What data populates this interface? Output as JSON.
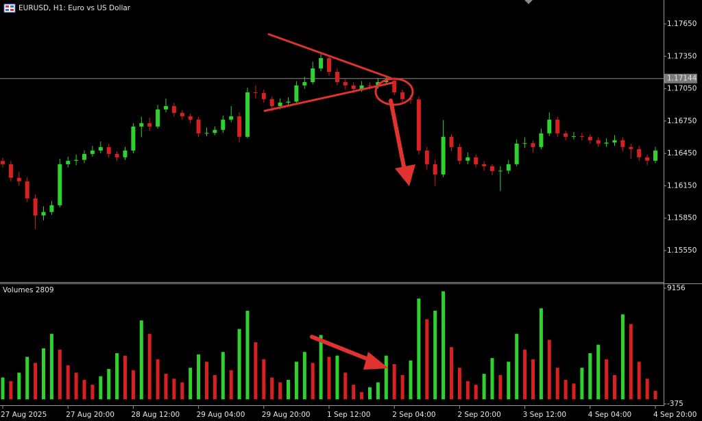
{
  "chart_data": [
    {
      "type": "candlestick",
      "title": "EURUSD, H1:  Euro vs US Dollar",
      "up_color": "#2fd12f",
      "down_color": "#d92020",
      "ylim": [
        1.15258,
        1.17872
      ],
      "yticks": [
        {
          "value": 1.1765,
          "label": "1.17650"
        },
        {
          "value": 1.1735,
          "label": "1.17350"
        },
        {
          "value": 1.1705,
          "label": "1.17050"
        },
        {
          "value": 1.1675,
          "label": "1.16750"
        },
        {
          "value": 1.1645,
          "label": "1.16450"
        },
        {
          "value": 1.1615,
          "label": "1.16150"
        },
        {
          "value": 1.1585,
          "label": "1.15850"
        },
        {
          "value": 1.1555,
          "label": "1.15550"
        }
      ],
      "current_price": {
        "value": 1.17144,
        "label": "1.17144"
      },
      "open": [
        1.1638,
        1.1635,
        1.16224,
        1.16192,
        1.16033,
        1.15875,
        1.15907,
        1.1597,
        1.1635,
        1.16382,
        1.1639,
        1.16445,
        1.16477,
        1.16509,
        1.16445,
        1.16414,
        1.16477,
        1.16699,
        1.16731,
        1.16699,
        1.16858,
        1.16889,
        1.16826,
        1.16794,
        1.16763,
        1.16636,
        1.1664,
        1.16668,
        1.16763,
        1.16794,
        1.16604,
        1.17016,
        1.1701,
        1.16953,
        1.16889,
        1.16921,
        1.1693,
        1.1708,
        1.17111,
        1.17238,
        1.17333,
        1.17206,
        1.17111,
        1.1708,
        1.17048,
        1.1708,
        1.17075,
        1.17111,
        1.17124,
        1.17016,
        1.16953,
        1.1695,
        1.16477,
        1.1635,
        1.16255,
        1.16604,
        1.16509,
        1.16382,
        1.16414,
        1.1635,
        1.16331,
        1.16287,
        1.1629,
        1.1635,
        1.16541,
        1.16545,
        1.16509,
        1.16636,
        1.16763,
        1.16636,
        1.16604,
        1.1661,
        1.16604,
        1.16572,
        1.16541,
        1.1655,
        1.16572,
        1.16509,
        1.1649,
        1.16414,
        1.16382
      ],
      "high": [
        1.1641,
        1.1638,
        1.1628,
        1.1623,
        1.1607,
        1.1596,
        1.1601,
        1.164,
        1.1642,
        1.1644,
        1.1648,
        1.1652,
        1.1656,
        1.1654,
        1.1647,
        1.1651,
        1.1673,
        1.1679,
        1.1678,
        1.169,
        1.1696,
        1.1692,
        1.1685,
        1.1682,
        1.1679,
        1.1669,
        1.167,
        1.168,
        1.1689,
        1.1683,
        1.1706,
        1.1708,
        1.1704,
        1.1698,
        1.1696,
        1.1697,
        1.1712,
        1.1716,
        1.173,
        1.1737,
        1.1735,
        1.1724,
        1.1714,
        1.1711,
        1.1712,
        1.1711,
        1.1715,
        1.1717,
        1.1715,
        1.1704,
        1.1699,
        1.1698,
        1.1651,
        1.1639,
        1.1676,
        1.1663,
        1.1654,
        1.1646,
        1.1644,
        1.1638,
        1.1635,
        1.1633,
        1.1639,
        1.1658,
        1.166,
        1.1657,
        1.1668,
        1.1683,
        1.1679,
        1.1666,
        1.1665,
        1.1664,
        1.1663,
        1.166,
        1.1659,
        1.1662,
        1.166,
        1.1654,
        1.1652,
        1.1644,
        1.1651
      ],
      "low": [
        1.1632,
        1.1619,
        1.1615,
        1.16,
        1.1575,
        1.1583,
        1.1588,
        1.1595,
        1.1632,
        1.1634,
        1.1636,
        1.1642,
        1.1645,
        1.1641,
        1.1638,
        1.1639,
        1.1645,
        1.166,
        1.1666,
        1.1668,
        1.1683,
        1.1679,
        1.1676,
        1.1673,
        1.166,
        1.1661,
        1.1662,
        1.1664,
        1.1674,
        1.1655,
        1.1659,
        1.1696,
        1.1692,
        1.1684,
        1.1686,
        1.1689,
        1.1691,
        1.1705,
        1.1709,
        1.1721,
        1.1717,
        1.1708,
        1.1704,
        1.1701,
        1.1702,
        1.1704,
        1.1705,
        1.1709,
        1.1699,
        1.1692,
        1.1691,
        1.1644,
        1.163,
        1.1615,
        1.1623,
        1.1647,
        1.1635,
        1.1635,
        1.1632,
        1.1629,
        1.1625,
        1.161,
        1.1626,
        1.1633,
        1.165,
        1.1646,
        1.1649,
        1.1661,
        1.166,
        1.1657,
        1.1658,
        1.1657,
        1.1654,
        1.1651,
        1.1651,
        1.1652,
        1.1647,
        1.164,
        1.1638,
        1.1634,
        1.1636
      ],
      "close": [
        1.1635,
        1.16224,
        1.16192,
        1.16033,
        1.15875,
        1.15907,
        1.1597,
        1.1635,
        1.16382,
        1.1639,
        1.16445,
        1.16477,
        1.16509,
        1.16445,
        1.16414,
        1.16477,
        1.16699,
        1.16731,
        1.16699,
        1.16858,
        1.16889,
        1.16826,
        1.16794,
        1.16763,
        1.16636,
        1.1664,
        1.16668,
        1.16763,
        1.16794,
        1.16604,
        1.17016,
        1.1701,
        1.16953,
        1.16889,
        1.16921,
        1.1693,
        1.1708,
        1.17111,
        1.17238,
        1.17333,
        1.17206,
        1.17111,
        1.1708,
        1.17048,
        1.1708,
        1.17075,
        1.17111,
        1.17124,
        1.17016,
        1.16953,
        1.1695,
        1.16477,
        1.1635,
        1.16255,
        1.16604,
        1.16509,
        1.16382,
        1.16414,
        1.1635,
        1.16331,
        1.16287,
        1.1629,
        1.1635,
        1.16541,
        1.16545,
        1.16509,
        1.16636,
        1.16763,
        1.16636,
        1.16604,
        1.1661,
        1.16604,
        1.16572,
        1.16541,
        1.1655,
        1.16572,
        1.16509,
        1.1649,
        1.16414,
        1.16382,
        1.16477
      ]
    },
    {
      "type": "bar",
      "title": "Volumes 2809",
      "up_color": "#2fd12f",
      "down_color": "#d92020",
      "ylim": [
        -375,
        9156
      ],
      "yticks": [
        9156,
        -375
      ],
      "values": [
        1800,
        1500,
        2200,
        3500,
        3000,
        4200,
        5400,
        4100,
        2800,
        2200,
        1600,
        1200,
        1900,
        2500,
        3800,
        3600,
        2400,
        6500,
        5400,
        3300,
        2100,
        1700,
        1400,
        2600,
        3700,
        3100,
        2000,
        3900,
        2400,
        5800,
        7300,
        4700,
        3300,
        1800,
        1400,
        1600,
        3100,
        3900,
        3000,
        5300,
        3500,
        3600,
        2200,
        1200,
        600,
        1000,
        1400,
        3600,
        2900,
        2000,
        3200,
        8300,
        6600,
        7300,
        8900,
        4300,
        2600,
        1500,
        1200,
        2100,
        3400,
        2000,
        3100,
        5400,
        4100,
        3300,
        7500,
        4900,
        2600,
        1600,
        1300,
        2600,
        3800,
        4500,
        3300,
        2000,
        7000,
        6200,
        3100,
        1700,
        700
      ],
      "xticks": [
        {
          "value": 0,
          "label": "27 Aug 2025"
        },
        {
          "value": 8,
          "label": "27 Aug 20:00"
        },
        {
          "value": 16,
          "label": "28 Aug 12:00"
        },
        {
          "value": 24,
          "label": "29 Aug 04:00"
        },
        {
          "value": 32,
          "label": "29 Aug 20:00"
        },
        {
          "value": 40,
          "label": "1 Sep 12:00"
        },
        {
          "value": 48,
          "label": "2 Sep 04:00"
        },
        {
          "value": 56,
          "label": "2 Sep 20:00"
        },
        {
          "value": 64,
          "label": "3 Sep 12:00"
        },
        {
          "value": 72,
          "label": "4 Sep 04:00"
        },
        {
          "value": 80,
          "label": "4 Sep 20:00"
        }
      ]
    }
  ]
}
